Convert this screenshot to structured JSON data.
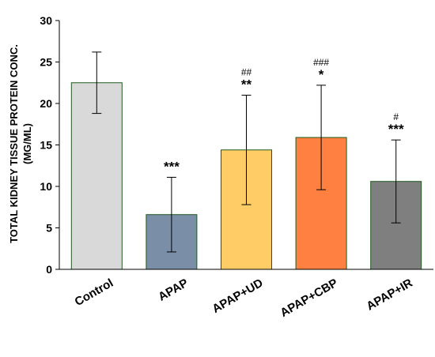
{
  "chart_data": {
    "type": "bar",
    "title": "",
    "xlabel": "",
    "ylabel_line1": "TOTAL KIDNEY TISSUE PROTEIN CONC.",
    "ylabel_line2": "(MG/ML)",
    "ylim": [
      0,
      30
    ],
    "yticks": [
      0,
      5,
      10,
      15,
      20,
      25,
      30
    ],
    "grid": false,
    "legend": "none",
    "categories": [
      "Control",
      "APAP",
      "APAP+UD",
      "APAP+CBP",
      "APAP+IR"
    ],
    "values": [
      22.5,
      6.6,
      14.4,
      15.9,
      10.6
    ],
    "error_bars": [
      3.7,
      4.5,
      6.6,
      6.3,
      5.0
    ],
    "bar_colors": [
      "#d9d9d9",
      "#7a8ea8",
      "#ffcc66",
      "#ff8040",
      "#7f7f7f"
    ],
    "bar_edge_color": "#1e5a1e",
    "annotations": [
      {
        "stars": "",
        "hashes": ""
      },
      {
        "stars": "***",
        "hashes": ""
      },
      {
        "stars": "**",
        "hashes": "##"
      },
      {
        "stars": "*",
        "hashes": "###"
      },
      {
        "stars": "***",
        "hashes": "#"
      }
    ]
  }
}
